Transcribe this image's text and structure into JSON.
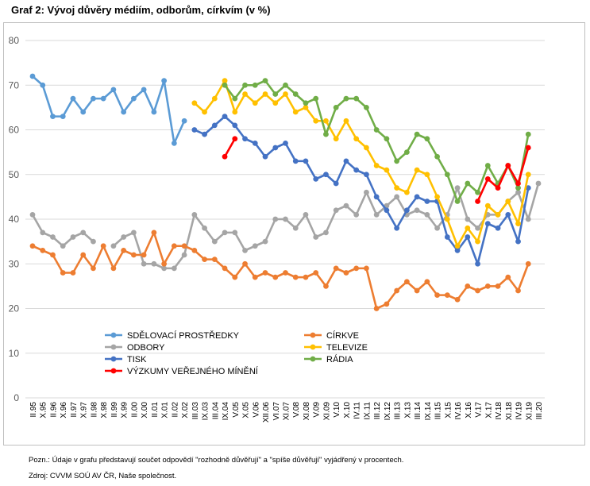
{
  "title": "Graf 2: Vývoj důvěry médiím, odborům, církvím (v %)",
  "note": "Pozn.: Údaje v grafu představují součet odpovědí \"rozhodně důvěřují\" a \"spíše důvěřují\" vyjádřený v procentech.",
  "source": "Zdroj: CVVM SOÚ AV ČR, Naše společnost.",
  "chart_data": {
    "type": "line",
    "ylim": [
      0,
      80
    ],
    "yticks": [
      0,
      10,
      20,
      30,
      40,
      50,
      60,
      70,
      80
    ],
    "grid": true,
    "legend_position": "bottom-center",
    "categories": [
      "II.95",
      "X.95",
      "II.96",
      "X.96",
      "II.97",
      "X.97",
      "II.98",
      "X.98",
      "II.99",
      "X.99",
      "II.00",
      "X.00",
      "II.01",
      "X.01",
      "II.02",
      "X.02",
      "III.03",
      "IX.03",
      "III.04",
      "IX.04",
      "V.05",
      "X.05",
      "V.06",
      "XII.06",
      "VI.07",
      "XI.07",
      "V.08",
      "XI.08",
      "V.09",
      "XI.09",
      "V.10",
      "X.10",
      "IV.11",
      "IX.11",
      "III.12",
      "IX.12",
      "III.13",
      "X.13",
      "III.14",
      "IX.14",
      "III.15",
      "X.15",
      "IV.16",
      "X.16",
      "V.17",
      "X.17",
      "IV.18",
      "XI.18",
      "IV.19",
      "XI.19",
      "III.20"
    ],
    "series": [
      {
        "name": "SDĚLOVACÍ PROSTŘEDKY",
        "color": "#5b9bd5",
        "values": [
          72,
          70,
          63,
          63,
          67,
          64,
          67,
          67,
          69,
          64,
          67,
          69,
          64,
          71,
          57,
          62,
          null,
          null,
          null,
          null,
          null,
          null,
          null,
          null,
          null,
          null,
          null,
          null,
          null,
          null,
          null,
          null,
          null,
          null,
          null,
          null,
          null,
          null,
          null,
          null,
          null,
          null,
          null,
          null,
          null,
          null,
          null,
          null,
          null,
          null,
          null
        ]
      },
      {
        "name": "ODBORY",
        "color": "#a5a5a5",
        "values": [
          41,
          37,
          36,
          34,
          36,
          37,
          35,
          null,
          34,
          36,
          37,
          30,
          30,
          29,
          29,
          32,
          41,
          38,
          35,
          37,
          37,
          33,
          34,
          35,
          40,
          40,
          38,
          41,
          36,
          37,
          42,
          43,
          41,
          46,
          41,
          43,
          45,
          41,
          42,
          41,
          38,
          41,
          47,
          40,
          38,
          41,
          41,
          44,
          46,
          40,
          48
        ]
      },
      {
        "name": "TISK",
        "color": "#4472c4",
        "values": [
          null,
          null,
          null,
          null,
          null,
          null,
          null,
          null,
          null,
          null,
          null,
          null,
          null,
          null,
          null,
          null,
          60,
          59,
          61,
          63,
          61,
          58,
          57,
          54,
          56,
          57,
          53,
          53,
          49,
          50,
          48,
          53,
          51,
          50,
          45,
          42,
          38,
          42,
          45,
          44,
          44,
          36,
          33,
          36,
          30,
          39,
          38,
          41,
          35,
          47,
          null
        ]
      },
      {
        "name": "CÍRKVE",
        "color": "#ed7d31",
        "values": [
          34,
          33,
          32,
          28,
          28,
          32,
          29,
          34,
          29,
          33,
          32,
          32,
          37,
          30,
          34,
          34,
          33,
          31,
          31,
          29,
          27,
          30,
          27,
          28,
          27,
          28,
          27,
          27,
          28,
          25,
          29,
          28,
          29,
          29,
          20,
          21,
          24,
          26,
          24,
          26,
          23,
          23,
          22,
          25,
          24,
          25,
          25,
          27,
          24,
          30,
          null
        ]
      },
      {
        "name": "TELEVIZE",
        "color": "#ffc000",
        "values": [
          null,
          null,
          null,
          null,
          null,
          null,
          null,
          null,
          null,
          null,
          null,
          null,
          null,
          null,
          null,
          null,
          66,
          64,
          67,
          71,
          64,
          68,
          66,
          68,
          66,
          68,
          64,
          65,
          62,
          62,
          58,
          62,
          58,
          56,
          52,
          51,
          47,
          46,
          51,
          50,
          45,
          40,
          34,
          38,
          35,
          43,
          41,
          44,
          39,
          50,
          null
        ]
      },
      {
        "name": "RÁDIA",
        "color": "#70ad47",
        "values": [
          null,
          null,
          null,
          null,
          null,
          null,
          null,
          null,
          null,
          null,
          null,
          null,
          null,
          null,
          null,
          null,
          null,
          null,
          null,
          70,
          67,
          70,
          70,
          71,
          68,
          70,
          68,
          66,
          67,
          59,
          65,
          67,
          67,
          65,
          60,
          58,
          53,
          55,
          59,
          58,
          54,
          50,
          44,
          48,
          46,
          52,
          48,
          52,
          47,
          59,
          null
        ]
      },
      {
        "name": "VÝZKUMY VEŘEJNÉHO MÍNĚNÍ",
        "color": "#ff0000",
        "values": [
          null,
          null,
          null,
          null,
          null,
          null,
          null,
          null,
          null,
          null,
          null,
          null,
          null,
          null,
          null,
          null,
          null,
          null,
          null,
          54,
          58,
          null,
          null,
          null,
          null,
          null,
          null,
          null,
          null,
          null,
          null,
          null,
          null,
          null,
          null,
          null,
          null,
          null,
          null,
          null,
          null,
          null,
          null,
          null,
          44,
          49,
          47,
          52,
          48,
          56,
          null
        ]
      }
    ]
  }
}
